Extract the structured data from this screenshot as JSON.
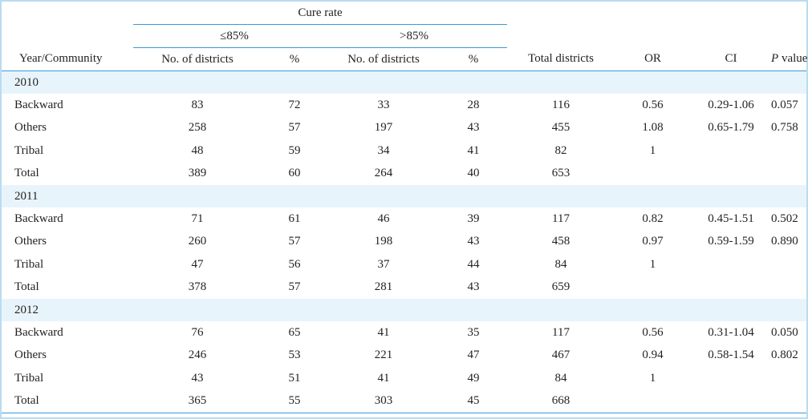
{
  "header": {
    "cure_rate": "Cure rate",
    "le85": "≤85%",
    "gt85": ">85%",
    "year_community": "Year/Community",
    "num_districts_1": "No. of districts",
    "pct_1": "%",
    "num_districts_2": "No. of districts",
    "pct_2": "%",
    "total_districts": "Total districts",
    "or": "OR",
    "ci": "CI",
    "p_italic": "P",
    "p_rest": " value"
  },
  "groups": [
    {
      "year": "2010",
      "rows": [
        {
          "community": "Backward",
          "n1": "83",
          "p1": "72",
          "n2": "33",
          "p2": "28",
          "total": "116",
          "or": "0.56",
          "ci": "0.29-1.06",
          "p": "0.057"
        },
        {
          "community": "Others",
          "n1": "258",
          "p1": "57",
          "n2": "197",
          "p2": "43",
          "total": "455",
          "or": "1.08",
          "ci": "0.65-1.79",
          "p": "0.758"
        },
        {
          "community": "Tribal",
          "n1": "48",
          "p1": "59",
          "n2": "34",
          "p2": "41",
          "total": "82",
          "or": "1",
          "ci": "",
          "p": ""
        },
        {
          "community": "Total",
          "n1": "389",
          "p1": "60",
          "n2": "264",
          "p2": "40",
          "total": "653",
          "or": "",
          "ci": "",
          "p": ""
        }
      ]
    },
    {
      "year": "2011",
      "rows": [
        {
          "community": "Backward",
          "n1": "71",
          "p1": "61",
          "n2": "46",
          "p2": "39",
          "total": "117",
          "or": "0.82",
          "ci": "0.45-1.51",
          "p": "0.502"
        },
        {
          "community": "Others",
          "n1": "260",
          "p1": "57",
          "n2": "198",
          "p2": "43",
          "total": "458",
          "or": "0.97",
          "ci": "0.59-1.59",
          "p": "0.890"
        },
        {
          "community": "Tribal",
          "n1": "47",
          "p1": "56",
          "n2": "37",
          "p2": "44",
          "total": "84",
          "or": "1",
          "ci": "",
          "p": ""
        },
        {
          "community": "Total",
          "n1": "378",
          "p1": "57",
          "n2": "281",
          "p2": "43",
          "total": "659",
          "or": "",
          "ci": "",
          "p": ""
        }
      ]
    },
    {
      "year": "2012",
      "rows": [
        {
          "community": "Backward",
          "n1": "76",
          "p1": "65",
          "n2": "41",
          "p2": "35",
          "total": "117",
          "or": "0.56",
          "ci": "0.31-1.04",
          "p": "0.050"
        },
        {
          "community": "Others",
          "n1": "246",
          "p1": "53",
          "n2": "221",
          "p2": "47",
          "total": "467",
          "or": "0.94",
          "ci": "0.58-1.54",
          "p": "0.802"
        },
        {
          "community": "Tribal",
          "n1": "43",
          "p1": "51",
          "n2": "41",
          "p2": "49",
          "total": "84",
          "or": "1",
          "ci": "",
          "p": ""
        },
        {
          "community": "Total",
          "n1": "365",
          "p1": "55",
          "n2": "303",
          "p2": "45",
          "total": "668",
          "or": "",
          "ci": "",
          "p": ""
        }
      ]
    }
  ]
}
